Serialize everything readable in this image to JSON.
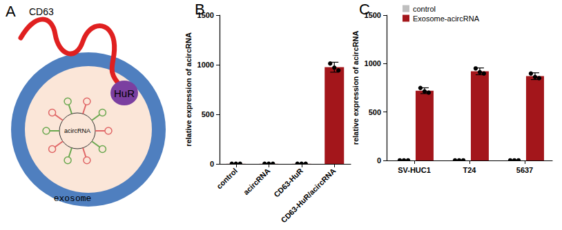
{
  "chart_data": [
    {
      "type": "bar",
      "annotations": [
        "B"
      ],
      "ylabel": "relative expression of acircRNA",
      "categories": [
        "control",
        "acircRNA",
        "CD63-HuR",
        "CD63-HuR/acircRNA"
      ],
      "values": [
        1,
        1,
        1,
        975
      ],
      "errors": [
        1,
        1,
        1,
        50
      ],
      "points": [
        [
          1,
          1,
          1
        ],
        [
          1,
          1,
          1
        ],
        [
          1,
          1,
          1
        ],
        [
          1012,
          970,
          943
        ]
      ],
      "color": "#a3161b",
      "ylim": [
        0,
        1500
      ],
      "yticks": [
        0,
        500,
        1000,
        1500
      ],
      "grid": false
    },
    {
      "type": "bar",
      "annotations": [
        "C"
      ],
      "ylabel": "relative expression of acircRNA",
      "categories": [
        "SV-HUC1",
        "T24",
        "5637"
      ],
      "series": [
        {
          "name": "control",
          "color": "#bfbfbf",
          "values": [
            1,
            1,
            1
          ],
          "errors": [
            0,
            0,
            0
          ],
          "points": [
            [
              1,
              1,
              1
            ],
            [
              1,
              1,
              1
            ],
            [
              1,
              1,
              1
            ]
          ]
        },
        {
          "name": "Exosome-acircRNA",
          "color": "#a3161b",
          "values": [
            720,
            920,
            870
          ],
          "errors": [
            30,
            35,
            35
          ],
          "points": [
            [
              748,
              712,
              700
            ],
            [
              950,
              912,
              898
            ],
            [
              898,
              862,
              850
            ]
          ]
        }
      ],
      "ylim": [
        0,
        1500
      ],
      "yticks": [
        0,
        500,
        1000,
        1500
      ],
      "legend": "top",
      "grid": false
    }
  ],
  "diagram": {
    "panel_label": "A",
    "membrane_protein": "CD63",
    "binding_protein": "HuR",
    "cargo": "acircRNA",
    "vesicle": "exosome"
  }
}
